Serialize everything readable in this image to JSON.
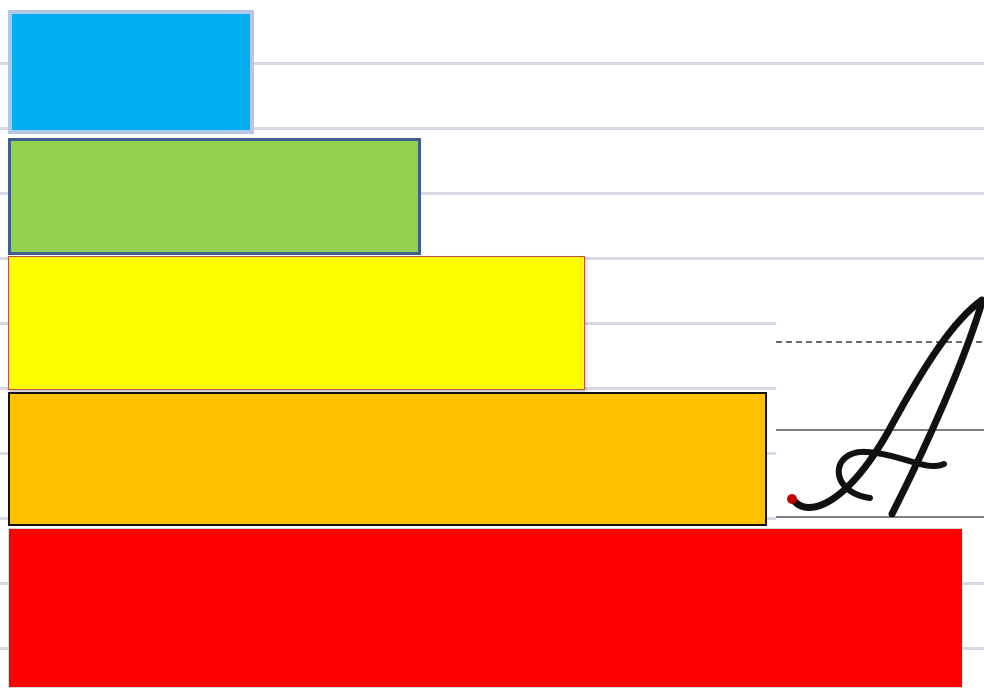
{
  "colors": {
    "background": "#ffffff",
    "ruled_line": "#d6d8e6",
    "bars": [
      "#00b0f0",
      "#92d050",
      "#ffff00",
      "#ffc000",
      "#ff0000"
    ],
    "ink": "#111111",
    "start_dot": "#c00000"
  },
  "bars": [
    {
      "name": "blue",
      "color": "#00b0f0"
    },
    {
      "name": "green",
      "color": "#92d050"
    },
    {
      "name": "yellow",
      "color": "#ffff00"
    },
    {
      "name": "orange",
      "color": "#ffc000"
    },
    {
      "name": "red",
      "color": "#ff0000"
    }
  ],
  "handwriting": {
    "letter": "A",
    "style": "cursive",
    "icon": "cursive-letter-a-icon"
  }
}
